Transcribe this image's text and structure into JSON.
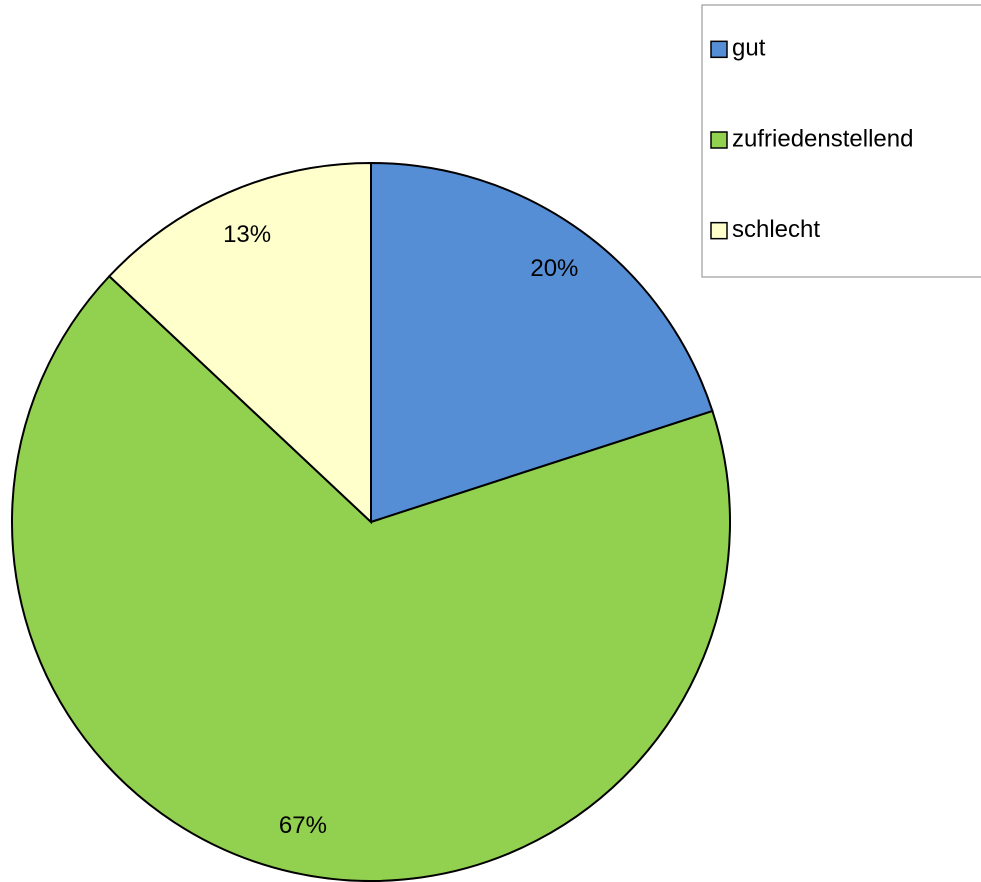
{
  "chart_data": {
    "type": "pie",
    "categories": [
      "gut",
      "zufriedenstellend",
      "schlecht"
    ],
    "values": [
      20,
      67,
      13
    ],
    "value_labels": [
      "20%",
      "67%",
      "13%"
    ],
    "colors": [
      "#558ed5",
      "#92d050",
      "#ffffcc"
    ],
    "legend": "top-right"
  }
}
